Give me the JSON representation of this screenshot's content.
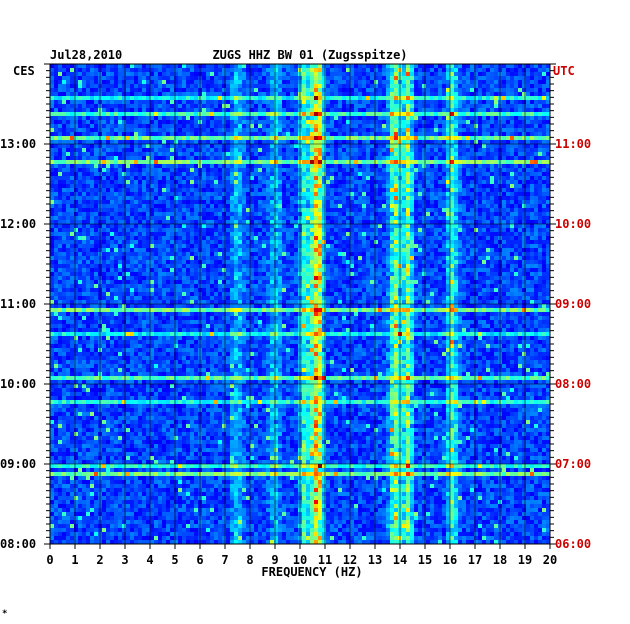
{
  "header": {
    "date": "Jul28,2010",
    "station": "ZUGS HHZ BW 01 (Zugsspitze)",
    "left_zone": "CES",
    "right_zone": "UTC",
    "footer_mark": "*"
  },
  "colors": {
    "utc_labels": "#cc0000",
    "grid": "#000000",
    "spectrogram_low": "#0a14c8",
    "spectrogram_high": "#e00000"
  },
  "chart_data": {
    "type": "heatmap",
    "title": "ZUGS HHZ BW 01 (Zugsspitze)",
    "xlabel": "FREQUENCY (HZ)",
    "xlim": [
      0,
      20
    ],
    "x_ticks": [
      "0",
      "1",
      "2",
      "3",
      "4",
      "5",
      "6",
      "7",
      "8",
      "9",
      "10",
      "11",
      "12",
      "13",
      "14",
      "15",
      "16",
      "17",
      "18",
      "19",
      "20"
    ],
    "y_left_label": "CES",
    "y_left_ticks": [
      "08:00",
      "09:00",
      "10:00",
      "11:00",
      "12:00",
      "13:00"
    ],
    "y_right_label": "UTC",
    "y_right_ticks": [
      "06:00",
      "07:00",
      "08:00",
      "09:00",
      "10:00",
      "11:00"
    ],
    "grid": true,
    "colormap": "jet",
    "energy_bands_hz": [
      {
        "center": 10.7,
        "strength": 0.75
      },
      {
        "center": 10.2,
        "strength": 0.35
      },
      {
        "center": 13.8,
        "strength": 0.45
      },
      {
        "center": 14.3,
        "strength": 0.45
      },
      {
        "center": 16.1,
        "strength": 0.35
      },
      {
        "center": 7.5,
        "strength": 0.2
      },
      {
        "center": 9.0,
        "strength": 0.2
      }
    ]
  }
}
